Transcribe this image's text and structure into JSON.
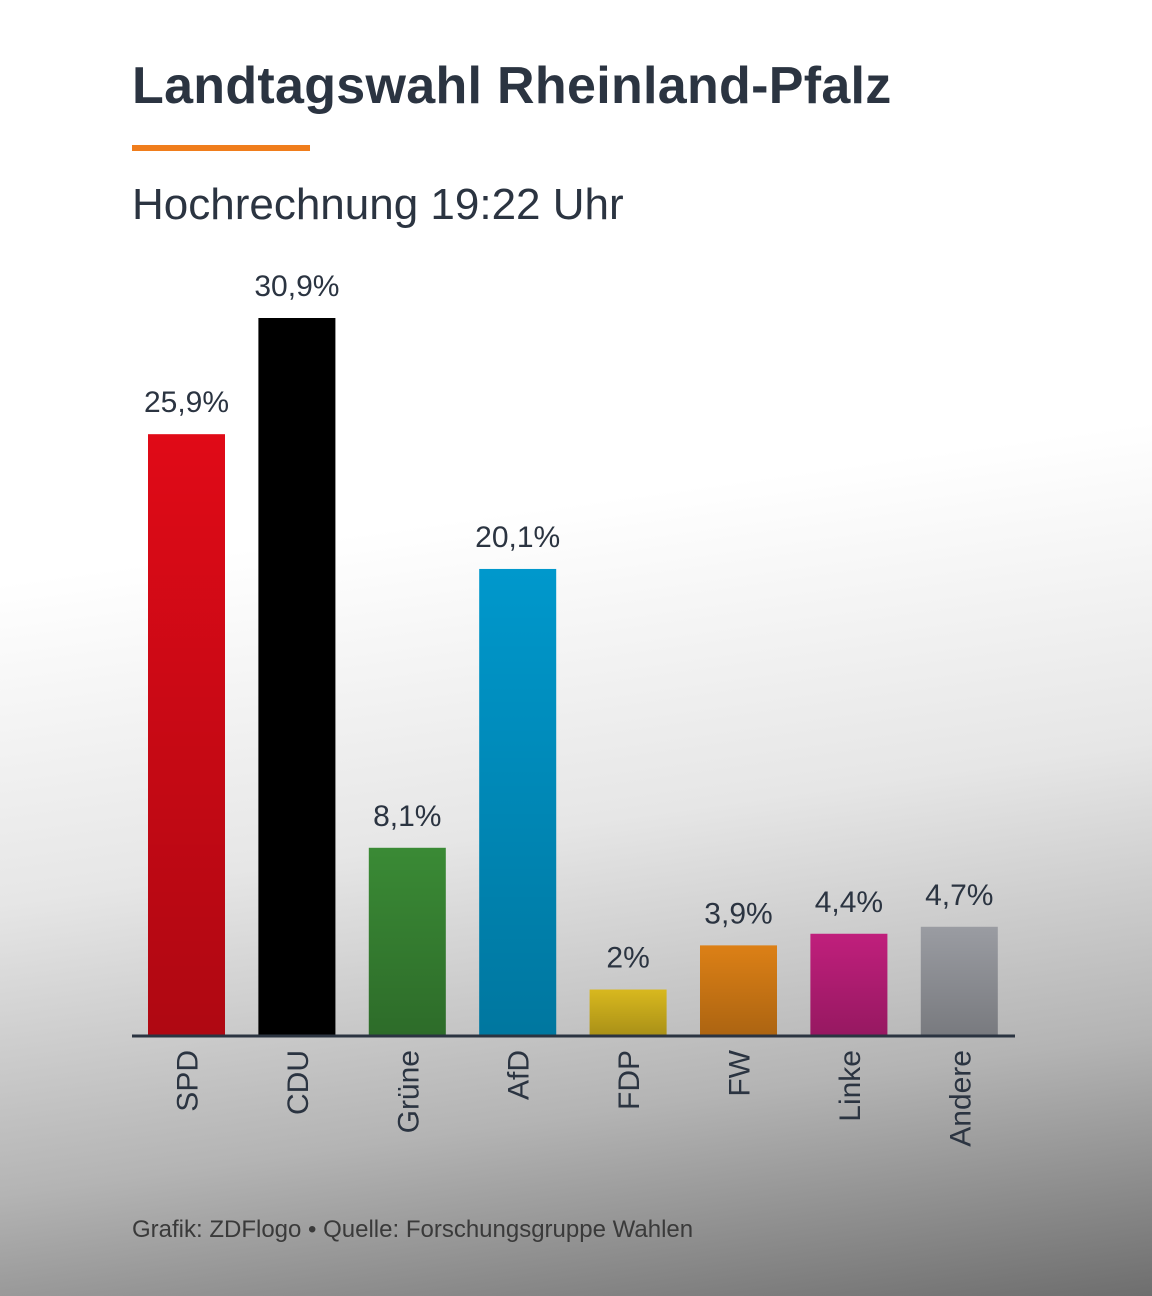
{
  "chart_data": {
    "type": "bar",
    "title": "Landtagswahl Rheinland-Pfalz",
    "subtitle": "Hochrechnung 19:22 Uhr",
    "categories": [
      "SPD",
      "CDU",
      "Grüne",
      "AfD",
      "FDP",
      "FW",
      "Linke",
      "Andere"
    ],
    "values": [
      25.9,
      30.9,
      8.1,
      20.1,
      2,
      3.9,
      4.4,
      4.7
    ],
    "data_labels": [
      "25,9%",
      "30,9%",
      "8,1%",
      "20,1%",
      "2%",
      "3,9%",
      "4,4%",
      "4,7%"
    ],
    "colors": [
      "#e00a17",
      "#000000",
      "#3a8a35",
      "#0098cc",
      "#d8b81e",
      "#dc8016",
      "#c01f7c",
      "#9a9ca2"
    ],
    "xlabel": "",
    "ylabel": "",
    "ylim": [
      0,
      30.9
    ],
    "grid": false,
    "legend": "none"
  },
  "accent_color": "#f07d1c",
  "footer": "Grafik: ZDFlogo • Quelle: Forschungsgruppe Wahlen"
}
